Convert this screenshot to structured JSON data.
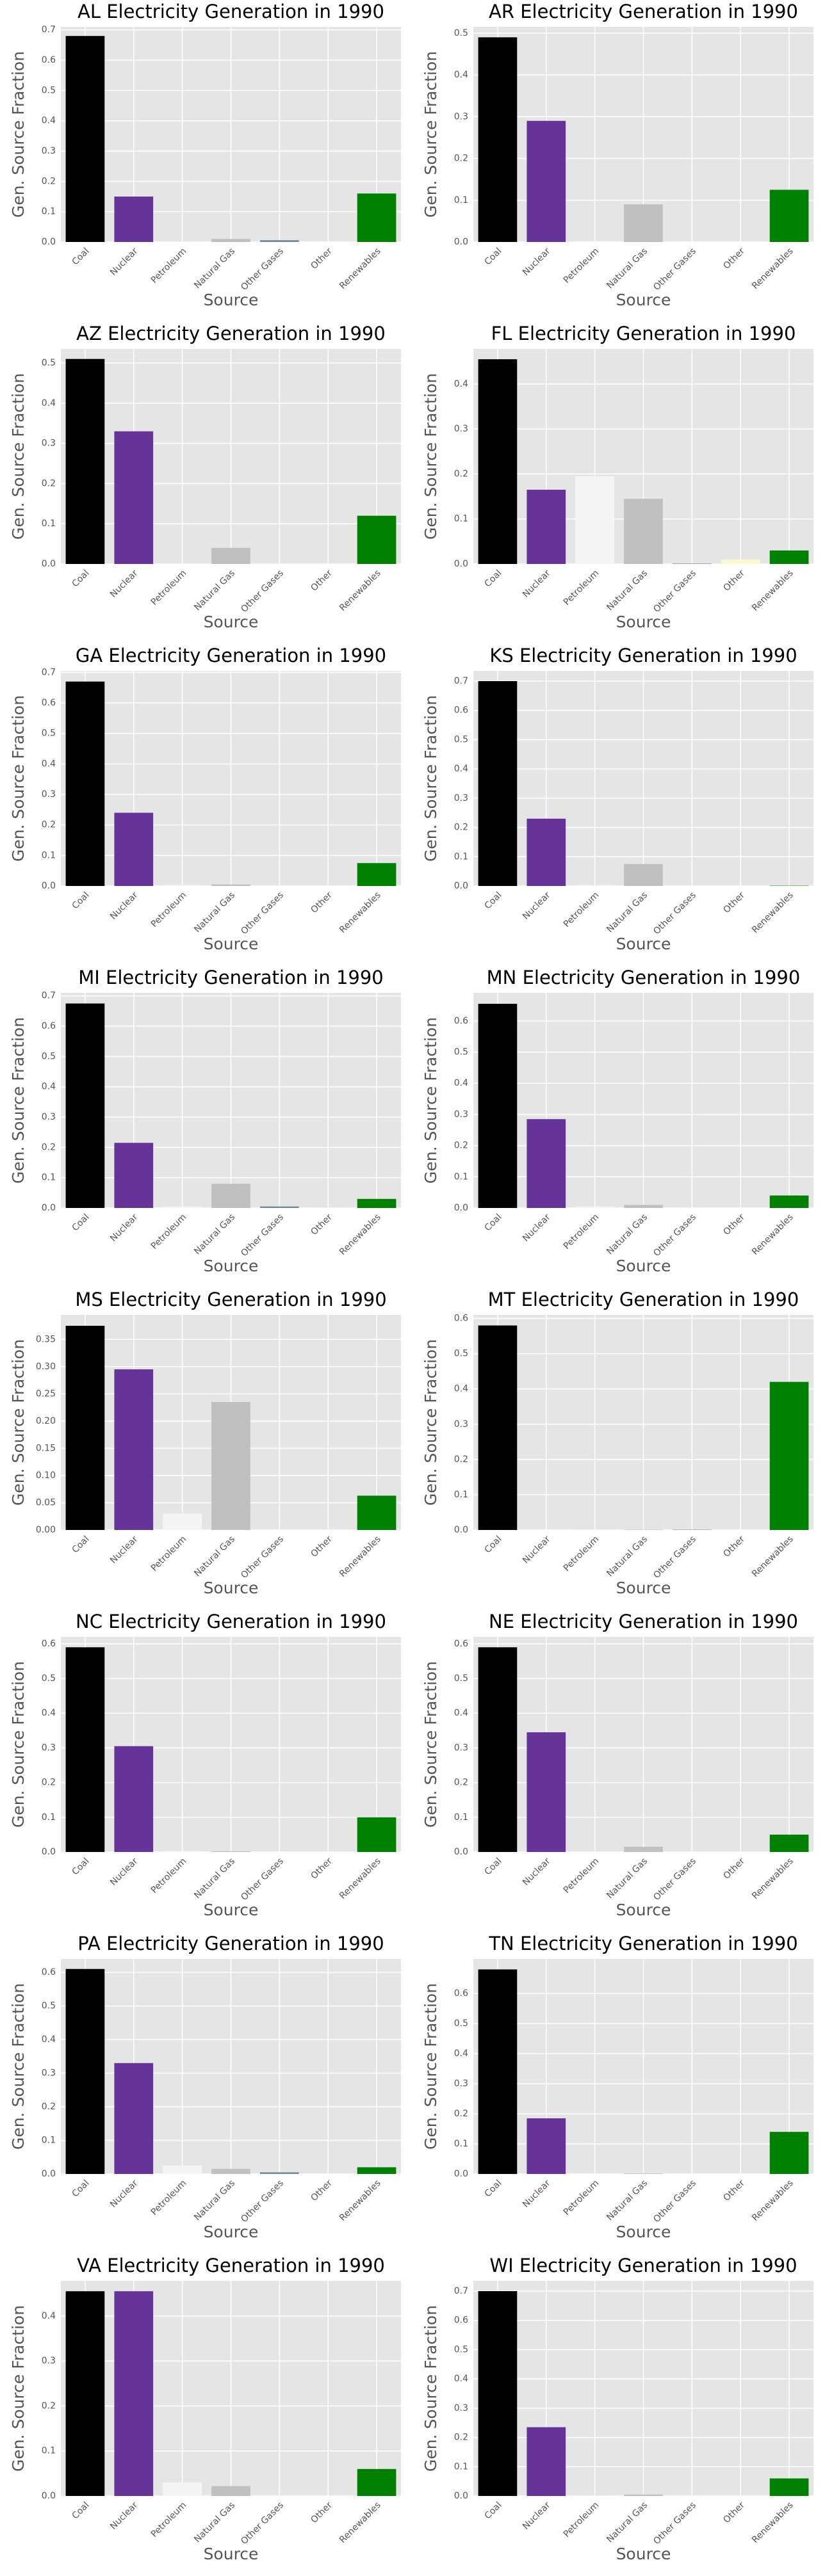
{
  "chart_data": [
    {
      "type": "bar",
      "title": "AL Electricity Generation in 1990",
      "xlabel": "Source",
      "ylabel": "Gen. Source Fraction",
      "categories": [
        "Coal",
        "Nuclear",
        "Petroleum",
        "Natural Gas",
        "Other Gases",
        "Other",
        "Renewables"
      ],
      "values": [
        0.68,
        0.15,
        0.002,
        0.01,
        0.006,
        0,
        0.16
      ],
      "colors": [
        "#000000",
        "#663399",
        "#f5f5f5",
        "#c0c0c0",
        "#778899",
        "#fafad2",
        "#008000"
      ],
      "ylim": [
        0,
        0.71
      ],
      "yticks": [
        {
          "value": 0,
          "label": "0.0"
        },
        0.1,
        0.2,
        0.3,
        0.4,
        0.5,
        0.6,
        0.7
      ],
      "grid": true
    },
    {
      "type": "bar",
      "title": "AR Electricity Generation in 1990",
      "xlabel": "Source",
      "ylabel": "Gen. Source Fraction",
      "categories": [
        "Coal",
        "Nuclear",
        "Petroleum",
        "Natural Gas",
        "Other Gases",
        "Other",
        "Renewables"
      ],
      "values": [
        0.49,
        0.29,
        0.002,
        0.09,
        0,
        0,
        0.125
      ],
      "colors": [
        "#000000",
        "#663399",
        "#f5f5f5",
        "#c0c0c0",
        "#778899",
        "#fafad2",
        "#008000"
      ],
      "ylim": [
        0,
        0.515
      ],
      "yticks": [
        {
          "value": 0,
          "label": "0.0"
        },
        0.1,
        0.2,
        0.3,
        0.4,
        0.5
      ],
      "grid": true
    },
    {
      "type": "bar",
      "title": "AZ Electricity Generation in 1990",
      "xlabel": "Source",
      "ylabel": "Gen. Source Fraction",
      "categories": [
        "Coal",
        "Nuclear",
        "Petroleum",
        "Natural Gas",
        "Other Gases",
        "Other",
        "Renewables"
      ],
      "values": [
        0.51,
        0.33,
        0.001,
        0.04,
        0,
        0,
        0.12
      ],
      "colors": [
        "#000000",
        "#663399",
        "#f5f5f5",
        "#c0c0c0",
        "#778899",
        "#fafad2",
        "#008000"
      ],
      "ylim": [
        0,
        0.535
      ],
      "yticks": [
        {
          "value": 0,
          "label": "0.0"
        },
        0.1,
        0.2,
        0.3,
        0.4,
        0.5
      ],
      "grid": true
    },
    {
      "type": "bar",
      "title": "FL Electricity Generation in 1990",
      "xlabel": "Source",
      "ylabel": "Gen. Source Fraction",
      "categories": [
        "Coal",
        "Nuclear",
        "Petroleum",
        "Natural Gas",
        "Other Gases",
        "Other",
        "Renewables"
      ],
      "values": [
        0.455,
        0.165,
        0.195,
        0.145,
        0.001,
        0.01,
        0.03
      ],
      "colors": [
        "#000000",
        "#663399",
        "#f5f5f5",
        "#c0c0c0",
        "#778899",
        "#fafad2",
        "#008000"
      ],
      "ylim": [
        0,
        0.478
      ],
      "yticks": [
        {
          "value": 0,
          "label": "0.0"
        },
        0.1,
        0.2,
        0.3,
        0.4
      ],
      "grid": true
    },
    {
      "type": "bar",
      "title": "GA Electricity Generation in 1990",
      "xlabel": "Source",
      "ylabel": "Gen. Source Fraction",
      "categories": [
        "Coal",
        "Nuclear",
        "Petroleum",
        "Natural Gas",
        "Other Gases",
        "Other",
        "Renewables"
      ],
      "values": [
        0.67,
        0.24,
        0.003,
        0.005,
        0,
        0,
        0.075
      ],
      "colors": [
        "#000000",
        "#663399",
        "#f5f5f5",
        "#c0c0c0",
        "#778899",
        "#fafad2",
        "#008000"
      ],
      "ylim": [
        0,
        0.705
      ],
      "yticks": [
        {
          "value": 0,
          "label": "0.0"
        },
        0.1,
        0.2,
        0.3,
        0.4,
        0.5,
        0.6,
        0.7
      ],
      "grid": true
    },
    {
      "type": "bar",
      "title": "KS Electricity Generation in 1990",
      "xlabel": "Source",
      "ylabel": "Gen. Source Fraction",
      "categories": [
        "Coal",
        "Nuclear",
        "Petroleum",
        "Natural Gas",
        "Other Gases",
        "Other",
        "Renewables"
      ],
      "values": [
        0.7,
        0.23,
        0.003,
        0.075,
        0,
        0,
        0.001
      ],
      "colors": [
        "#000000",
        "#663399",
        "#f5f5f5",
        "#c0c0c0",
        "#778899",
        "#fafad2",
        "#008000"
      ],
      "ylim": [
        0,
        0.735
      ],
      "yticks": [
        {
          "value": 0,
          "label": "0.0"
        },
        0.1,
        0.2,
        0.3,
        0.4,
        0.5,
        0.6,
        0.7
      ],
      "grid": true
    },
    {
      "type": "bar",
      "title": "MI Electricity Generation in 1990",
      "xlabel": "Source",
      "ylabel": "Gen. Source Fraction",
      "categories": [
        "Coal",
        "Nuclear",
        "Petroleum",
        "Natural Gas",
        "Other Gases",
        "Other",
        "Renewables"
      ],
      "values": [
        0.675,
        0.215,
        0.005,
        0.08,
        0.005,
        0.001,
        0.03
      ],
      "colors": [
        "#000000",
        "#663399",
        "#f5f5f5",
        "#c0c0c0",
        "#778899",
        "#fafad2",
        "#008000"
      ],
      "ylim": [
        0,
        0.71
      ],
      "yticks": [
        {
          "value": 0,
          "label": "0.0"
        },
        0.1,
        0.2,
        0.3,
        0.4,
        0.5,
        0.6,
        0.7
      ],
      "grid": true
    },
    {
      "type": "bar",
      "title": "MN Electricity Generation in 1990",
      "xlabel": "Source",
      "ylabel": "Gen. Source Fraction",
      "categories": [
        "Coal",
        "Nuclear",
        "Petroleum",
        "Natural Gas",
        "Other Gases",
        "Other",
        "Renewables"
      ],
      "values": [
        0.655,
        0.285,
        0.005,
        0.01,
        0,
        0,
        0.04
      ],
      "colors": [
        "#000000",
        "#663399",
        "#f5f5f5",
        "#c0c0c0",
        "#778899",
        "#fafad2",
        "#008000"
      ],
      "ylim": [
        0,
        0.69
      ],
      "yticks": [
        {
          "value": 0,
          "label": "0.0"
        },
        0.1,
        0.2,
        0.3,
        0.4,
        0.5,
        0.6
      ],
      "grid": true
    },
    {
      "type": "bar",
      "title": "MS Electricity Generation in 1990",
      "xlabel": "Source",
      "ylabel": "Gen. Source Fraction",
      "categories": [
        "Coal",
        "Nuclear",
        "Petroleum",
        "Natural Gas",
        "Other Gases",
        "Other",
        "Renewables"
      ],
      "values": [
        0.375,
        0.295,
        0.03,
        0.235,
        0,
        0,
        0.063
      ],
      "colors": [
        "#000000",
        "#663399",
        "#f5f5f5",
        "#c0c0c0",
        "#778899",
        "#fafad2",
        "#008000"
      ],
      "ylim": [
        0,
        0.395
      ],
      "yticks": [
        {
          "value": 0,
          "label": "0.00"
        },
        0.05,
        {
          "value": 0.1,
          "label": "0.10"
        },
        0.15,
        {
          "value": 0.2,
          "label": "0.20"
        },
        0.25,
        {
          "value": 0.3,
          "label": "0.30"
        },
        0.35
      ],
      "grid": true
    },
    {
      "type": "bar",
      "title": "MT Electricity Generation in 1990",
      "xlabel": "Source",
      "ylabel": "Gen. Source Fraction",
      "categories": [
        "Coal",
        "Nuclear",
        "Petroleum",
        "Natural Gas",
        "Other Gases",
        "Other",
        "Renewables"
      ],
      "values": [
        0.58,
        0,
        0.001,
        0.001,
        0.001,
        0,
        0.42
      ],
      "colors": [
        "#000000",
        "#663399",
        "#f5f5f5",
        "#c0c0c0",
        "#778899",
        "#fafad2",
        "#008000"
      ],
      "ylim": [
        0,
        0.61
      ],
      "yticks": [
        {
          "value": 0,
          "label": "0.0"
        },
        0.1,
        0.2,
        0.3,
        0.4,
        0.5,
        0.6
      ],
      "grid": true
    },
    {
      "type": "bar",
      "title": "NC Electricity Generation in 1990",
      "xlabel": "Source",
      "ylabel": "Gen. Source Fraction",
      "categories": [
        "Coal",
        "Nuclear",
        "Petroleum",
        "Natural Gas",
        "Other Gases",
        "Other",
        "Renewables"
      ],
      "values": [
        0.59,
        0.305,
        0.003,
        0.002,
        0,
        0,
        0.1
      ],
      "colors": [
        "#000000",
        "#663399",
        "#f5f5f5",
        "#c0c0c0",
        "#778899",
        "#fafad2",
        "#008000"
      ],
      "ylim": [
        0,
        0.62
      ],
      "yticks": [
        {
          "value": 0,
          "label": "0.0"
        },
        0.1,
        0.2,
        0.3,
        0.4,
        0.5,
        0.6
      ],
      "grid": true
    },
    {
      "type": "bar",
      "title": "NE Electricity Generation in 1990",
      "xlabel": "Source",
      "ylabel": "Gen. Source Fraction",
      "categories": [
        "Coal",
        "Nuclear",
        "Petroleum",
        "Natural Gas",
        "Other Gases",
        "Other",
        "Renewables"
      ],
      "values": [
        0.59,
        0.345,
        0.001,
        0.015,
        0,
        0,
        0.05
      ],
      "colors": [
        "#000000",
        "#663399",
        "#f5f5f5",
        "#c0c0c0",
        "#778899",
        "#fafad2",
        "#008000"
      ],
      "ylim": [
        0,
        0.62
      ],
      "yticks": [
        {
          "value": 0,
          "label": "0.0"
        },
        0.1,
        0.2,
        0.3,
        0.4,
        0.5,
        0.6
      ],
      "grid": true
    },
    {
      "type": "bar",
      "title": "PA Electricity Generation in 1990",
      "xlabel": "Source",
      "ylabel": "Gen. Source Fraction",
      "categories": [
        "Coal",
        "Nuclear",
        "Petroleum",
        "Natural Gas",
        "Other Gases",
        "Other",
        "Renewables"
      ],
      "values": [
        0.61,
        0.33,
        0.025,
        0.015,
        0.005,
        0,
        0.02
      ],
      "colors": [
        "#000000",
        "#663399",
        "#f5f5f5",
        "#c0c0c0",
        "#778899",
        "#fafad2",
        "#008000"
      ],
      "ylim": [
        0,
        0.64
      ],
      "yticks": [
        {
          "value": 0,
          "label": "0.0"
        },
        0.1,
        0.2,
        0.3,
        0.4,
        0.5,
        0.6
      ],
      "grid": true
    },
    {
      "type": "bar",
      "title": "TN Electricity Generation in 1990",
      "xlabel": "Source",
      "ylabel": "Gen. Source Fraction",
      "categories": [
        "Coal",
        "Nuclear",
        "Petroleum",
        "Natural Gas",
        "Other Gases",
        "Other",
        "Renewables"
      ],
      "values": [
        0.68,
        0.185,
        0.002,
        0.002,
        0,
        0,
        0.14
      ],
      "colors": [
        "#000000",
        "#663399",
        "#f5f5f5",
        "#c0c0c0",
        "#778899",
        "#fafad2",
        "#008000"
      ],
      "ylim": [
        0,
        0.715
      ],
      "yticks": [
        {
          "value": 0,
          "label": "0.0"
        },
        0.1,
        0.2,
        0.3,
        0.4,
        0.5,
        0.6
      ],
      "grid": true
    },
    {
      "type": "bar",
      "title": "VA Electricity Generation in 1990",
      "xlabel": "Source",
      "ylabel": "Gen. Source Fraction",
      "categories": [
        "Coal",
        "Nuclear",
        "Petroleum",
        "Natural Gas",
        "Other Gases",
        "Other",
        "Renewables"
      ],
      "values": [
        0.455,
        0.455,
        0.03,
        0.022,
        0,
        0,
        0.06
      ],
      "colors": [
        "#000000",
        "#663399",
        "#f5f5f5",
        "#c0c0c0",
        "#778899",
        "#fafad2",
        "#008000"
      ],
      "ylim": [
        0,
        0.478
      ],
      "yticks": [
        {
          "value": 0,
          "label": "0.0"
        },
        0.1,
        0.2,
        0.3,
        0.4
      ],
      "grid": true
    },
    {
      "type": "bar",
      "title": "WI Electricity Generation in 1990",
      "xlabel": "Source",
      "ylabel": "Gen. Source Fraction",
      "categories": [
        "Coal",
        "Nuclear",
        "Petroleum",
        "Natural Gas",
        "Other Gases",
        "Other",
        "Renewables"
      ],
      "values": [
        0.7,
        0.235,
        0.002,
        0.005,
        0,
        0,
        0.06
      ],
      "colors": [
        "#000000",
        "#663399",
        "#f5f5f5",
        "#c0c0c0",
        "#778899",
        "#fafad2",
        "#008000"
      ],
      "ylim": [
        0,
        0.735
      ],
      "yticks": [
        {
          "value": 0,
          "label": "0.0"
        },
        0.1,
        0.2,
        0.3,
        0.4,
        0.5,
        0.6,
        0.7
      ],
      "grid": true
    }
  ]
}
